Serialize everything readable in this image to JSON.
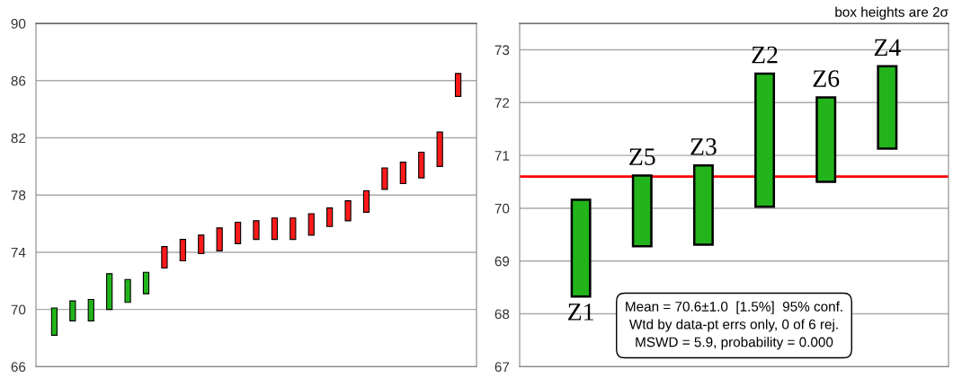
{
  "chart_data": [
    {
      "type": "bar",
      "categories": [
        null,
        null,
        null,
        null,
        null,
        null,
        null,
        null,
        null,
        null,
        null,
        null,
        null,
        null,
        null,
        null,
        null,
        null,
        null,
        null,
        null,
        null,
        null
      ],
      "base": [
        68.2,
        69.2,
        69.2,
        70.0,
        70.5,
        71.1,
        72.9,
        73.4,
        73.9,
        74.1,
        74.6,
        74.9,
        74.9,
        74.9,
        75.2,
        75.8,
        76.2,
        76.8,
        78.4,
        78.8,
        79.2,
        80.0,
        84.9
      ],
      "values": [
        1.9,
        1.4,
        1.5,
        2.5,
        1.6,
        1.5,
        1.5,
        1.5,
        1.3,
        1.6,
        1.5,
        1.3,
        1.5,
        1.5,
        1.5,
        1.3,
        1.4,
        1.5,
        1.5,
        1.5,
        1.8,
        2.4,
        1.6
      ],
      "colors": [
        "#22b41a",
        "#22b41a",
        "#22b41a",
        "#22b41a",
        "#22b41a",
        "#22b41a",
        "#ff1a1a",
        "#ff1a1a",
        "#ff1a1a",
        "#ff1a1a",
        "#ff1a1a",
        "#ff1a1a",
        "#ff1a1a",
        "#ff1a1a",
        "#ff1a1a",
        "#ff1a1a",
        "#ff1a1a",
        "#ff1a1a",
        "#ff1a1a",
        "#ff1a1a",
        "#ff1a1a",
        "#ff1a1a",
        "#ff1a1a"
      ],
      "ylim": [
        66,
        90
      ],
      "yticks": [
        66,
        70,
        74,
        78,
        82,
        86,
        90
      ],
      "grid": "y",
      "tick_labels": "y"
    },
    {
      "type": "bar",
      "categories": [
        "Z1",
        "Z5",
        "Z3",
        "Z2",
        "Z6",
        "Z4"
      ],
      "base": [
        68.33,
        69.28,
        69.31,
        70.03,
        70.5,
        71.13
      ],
      "values": [
        1.83,
        1.34,
        1.5,
        2.52,
        1.6,
        1.56
      ],
      "colors": [
        "#22b41a",
        "#22b41a",
        "#22b41a",
        "#22b41a",
        "#22b41a",
        "#22b41a"
      ],
      "ylim": [
        67,
        73.5
      ],
      "yticks": [
        67,
        68,
        69,
        70,
        71,
        72,
        73
      ],
      "grid": "y",
      "tick_labels": "y",
      "ref_lines": [
        {
          "axis": "y",
          "value": 70.6,
          "color": "#ff0000"
        }
      ],
      "title": "box heights are 2σ",
      "annotations": [
        "Mean = 70.6±1.0  [1.5%]  95% conf.\nWtd by data-pt errs only, 0 of 6 rej.\nMSWD = 5.9, probability = 0.000"
      ]
    }
  ]
}
